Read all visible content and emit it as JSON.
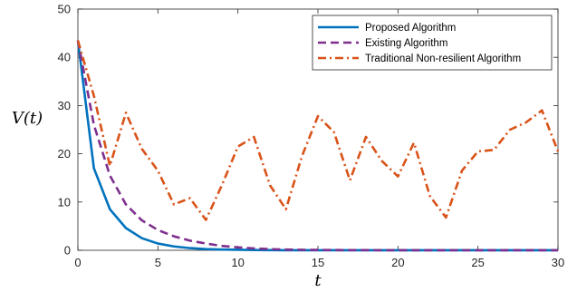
{
  "chart_data": {
    "type": "line",
    "xlabel": "t",
    "ylabel": "V(t)",
    "xlim": [
      0,
      30
    ],
    "ylim": [
      0,
      50
    ],
    "xticks": [
      0,
      5,
      10,
      15,
      20,
      25,
      30
    ],
    "yticks": [
      0,
      10,
      20,
      30,
      40,
      50
    ],
    "grid": false,
    "legend_position": "top-right",
    "x": [
      0,
      1,
      2,
      3,
      4,
      5,
      6,
      7,
      8,
      9,
      10,
      11,
      12,
      13,
      14,
      15,
      16,
      17,
      18,
      19,
      20,
      21,
      22,
      23,
      24,
      25,
      26,
      27,
      28,
      29,
      30
    ],
    "series": [
      {
        "name": "Proposed Algorithm",
        "color": "#0072BD",
        "style": "solid",
        "values": [
          43.5,
          17.0,
          8.5,
          4.6,
          2.5,
          1.4,
          0.8,
          0.45,
          0.25,
          0.15,
          0.1,
          0.06,
          0.04,
          0.02,
          0.01,
          0.01,
          0.01,
          0.01,
          0.01,
          0.01,
          0.01,
          0.01,
          0.01,
          0.01,
          0.01,
          0.01,
          0.01,
          0.01,
          0.01,
          0.01,
          0.01
        ]
      },
      {
        "name": "Existing Algorithm",
        "color": "#7E2F8E",
        "style": "dashed",
        "values": [
          43.5,
          26.0,
          15.5,
          9.5,
          6.2,
          4.2,
          2.9,
          2.0,
          1.4,
          0.9,
          0.6,
          0.4,
          0.25,
          0.15,
          0.1,
          0.08,
          0.05,
          0.04,
          0.03,
          0.02,
          0.02,
          0.02,
          0.02,
          0.02,
          0.02,
          0.02,
          0.02,
          0.02,
          0.02,
          0.02,
          0.02
        ]
      },
      {
        "name": "Traditional Non-resilient Algorithm",
        "color": "#D95319",
        "style": "dashdot",
        "values": [
          43.5,
          32.0,
          17.5,
          28.5,
          21.0,
          16.5,
          9.5,
          10.8,
          6.3,
          13.5,
          21.5,
          23.5,
          13.5,
          8.5,
          19.5,
          27.8,
          24.5,
          14.5,
          23.5,
          18.5,
          15.3,
          22.3,
          11.2,
          6.8,
          16.5,
          20.5,
          20.8,
          25.0,
          26.5,
          29.0,
          20.5
        ]
      }
    ]
  }
}
